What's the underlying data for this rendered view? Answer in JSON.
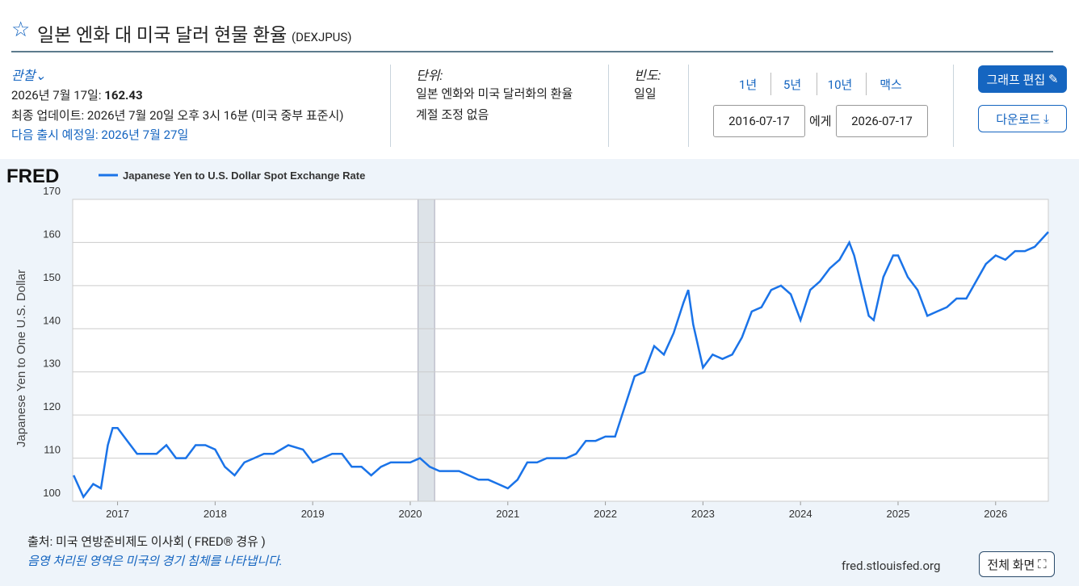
{
  "header": {
    "title": "일본 엔화 대 미국 달러 현물 환율",
    "series_id": "(DEXJPUS)"
  },
  "info": {
    "observation_label": "관찰",
    "observation_date": "2026년 7월 17일:",
    "observation_value": "162.43",
    "updated": "최종 업데이트: 2026년 7월 20일 오후 3시 16분 (미국 중부 표준시)",
    "next_release": "다음 출시 예정일: 2026년 7월 27일",
    "units_label": "단위:",
    "units_1": "일본 엔화와 미국 달러화의 환율",
    "units_2": "계절 조정 없음",
    "frequency_label": "빈도:",
    "frequency": "일일"
  },
  "range": {
    "buttons": [
      "1년",
      "5년",
      "10년",
      "맥스"
    ],
    "start": "2016-07-17",
    "joiner": "에게",
    "end": "2026-07-17"
  },
  "actions": {
    "edit": "그래프 편집",
    "download": "다운로드",
    "fullscreen": "전체 화면"
  },
  "footer": {
    "source": "출처: 미국 연방준비제도 이사회 ( FRED® 경유 )",
    "recession_note": "음영 처리된 영역은 미국의 경기 침체를 나타냅니다.",
    "site": "fred.stlouisfed.org",
    "logo": "FRED"
  },
  "chart_data": {
    "type": "line",
    "y_label": "Japanese Yen to One U.S. Dollar",
    "xlim": [
      2016.54,
      2026.54
    ],
    "xticks": [
      2017,
      2018,
      2019,
      2020,
      2021,
      2022,
      2023,
      2024,
      2025,
      2026
    ],
    "ylim": [
      100,
      170
    ],
    "yticks": [
      100,
      110,
      120,
      130,
      140,
      150,
      160,
      170
    ],
    "grid": true,
    "recessions": [
      [
        2020.08,
        2020.25
      ]
    ],
    "series": [
      {
        "name": "Japanese Yen to U.S. Dollar Spot Exchange Rate",
        "color": "#1a73e8",
        "x": [
          2016.55,
          2016.65,
          2016.75,
          2016.83,
          2016.9,
          2016.95,
          2017.0,
          2017.1,
          2017.2,
          2017.3,
          2017.4,
          2017.5,
          2017.6,
          2017.7,
          2017.8,
          2017.9,
          2018.0,
          2018.1,
          2018.2,
          2018.3,
          2018.4,
          2018.5,
          2018.6,
          2018.75,
          2018.9,
          2019.0,
          2019.1,
          2019.2,
          2019.3,
          2019.4,
          2019.5,
          2019.6,
          2019.7,
          2019.8,
          2019.9,
          2020.0,
          2020.1,
          2020.2,
          2020.3,
          2020.4,
          2020.5,
          2020.6,
          2020.7,
          2020.8,
          2020.9,
          2021.0,
          2021.1,
          2021.2,
          2021.3,
          2021.4,
          2021.5,
          2021.6,
          2021.7,
          2021.8,
          2021.9,
          2022.0,
          2022.1,
          2022.2,
          2022.3,
          2022.4,
          2022.5,
          2022.6,
          2022.7,
          2022.8,
          2022.85,
          2022.9,
          2023.0,
          2023.1,
          2023.2,
          2023.3,
          2023.4,
          2023.5,
          2023.6,
          2023.7,
          2023.8,
          2023.9,
          2024.0,
          2024.1,
          2024.2,
          2024.3,
          2024.4,
          2024.5,
          2024.55,
          2024.7,
          2024.75,
          2024.85,
          2024.95,
          2025.0,
          2025.1,
          2025.2,
          2025.3,
          2025.4,
          2025.5,
          2025.6,
          2025.7,
          2025.8,
          2025.9,
          2026.0,
          2026.1,
          2026.2,
          2026.3,
          2026.4,
          2026.54
        ],
        "values": [
          106,
          101,
          104,
          103,
          113,
          117,
          117,
          114,
          111,
          111,
          111,
          113,
          110,
          110,
          113,
          113,
          112,
          108,
          106,
          109,
          110,
          111,
          111,
          113,
          112,
          109,
          110,
          111,
          111,
          108,
          108,
          106,
          108,
          109,
          109,
          109,
          110,
          108,
          107,
          107,
          107,
          106,
          105,
          105,
          104,
          103,
          105,
          109,
          109,
          110,
          110,
          110,
          111,
          114,
          114,
          115,
          115,
          122,
          129,
          130,
          136,
          134,
          139,
          146,
          149,
          141,
          131,
          134,
          133,
          134,
          138,
          144,
          145,
          149,
          150,
          148,
          142,
          149,
          151,
          154,
          156,
          160,
          157,
          143,
          142,
          152,
          157,
          157,
          152,
          149,
          143,
          144,
          145,
          147,
          147,
          151,
          155,
          157,
          156,
          158,
          158,
          159,
          162.43
        ]
      }
    ]
  }
}
